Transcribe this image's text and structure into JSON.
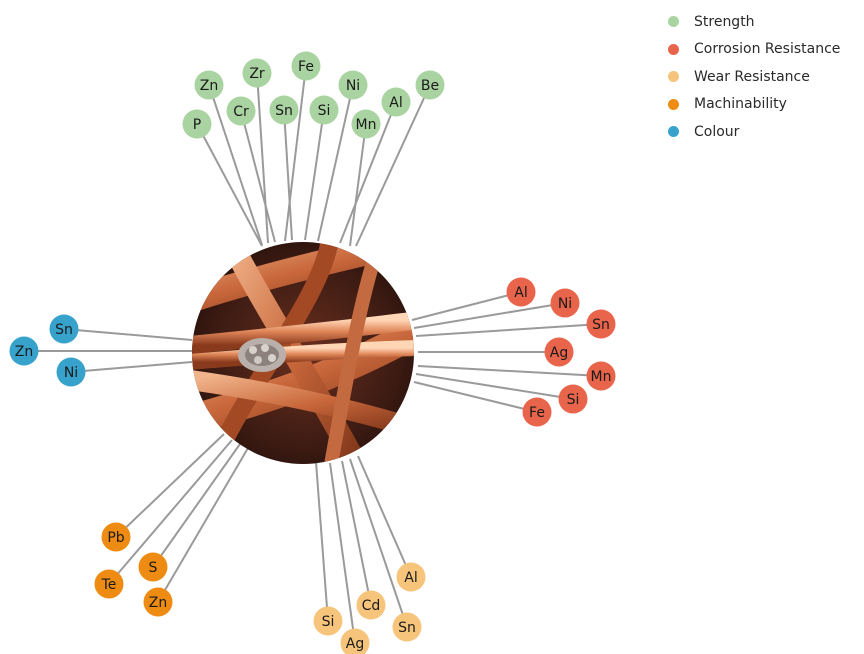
{
  "legend": [
    {
      "label": "Strength",
      "color": "#a9d3a0"
    },
    {
      "label": "Corrosion Resistance",
      "color": "#e8644a"
    },
    {
      "label": "Wear Resistance",
      "color": "#f6c47a"
    },
    {
      "label": "Machinability",
      "color": "#ee8b12"
    },
    {
      "label": "Colour",
      "color": "#37a3cc"
    }
  ],
  "center_image": "copper-wire-strands",
  "groups": {
    "strength": [
      "Zn",
      "Zr",
      "Fe",
      "Ni",
      "Be",
      "P",
      "Cr",
      "Sn",
      "Si",
      "Al",
      "Mn"
    ],
    "corrosion_resistance": [
      "Al",
      "Ni",
      "Sn",
      "Ag",
      "Mn",
      "Si",
      "Fe"
    ],
    "colour": [
      "Sn",
      "Zn",
      "Ni"
    ],
    "machinability": [
      "Pb",
      "Te",
      "S",
      "Zn"
    ],
    "wear_resistance": [
      "Si",
      "Ag",
      "Cd",
      "Sn",
      "Al"
    ]
  }
}
